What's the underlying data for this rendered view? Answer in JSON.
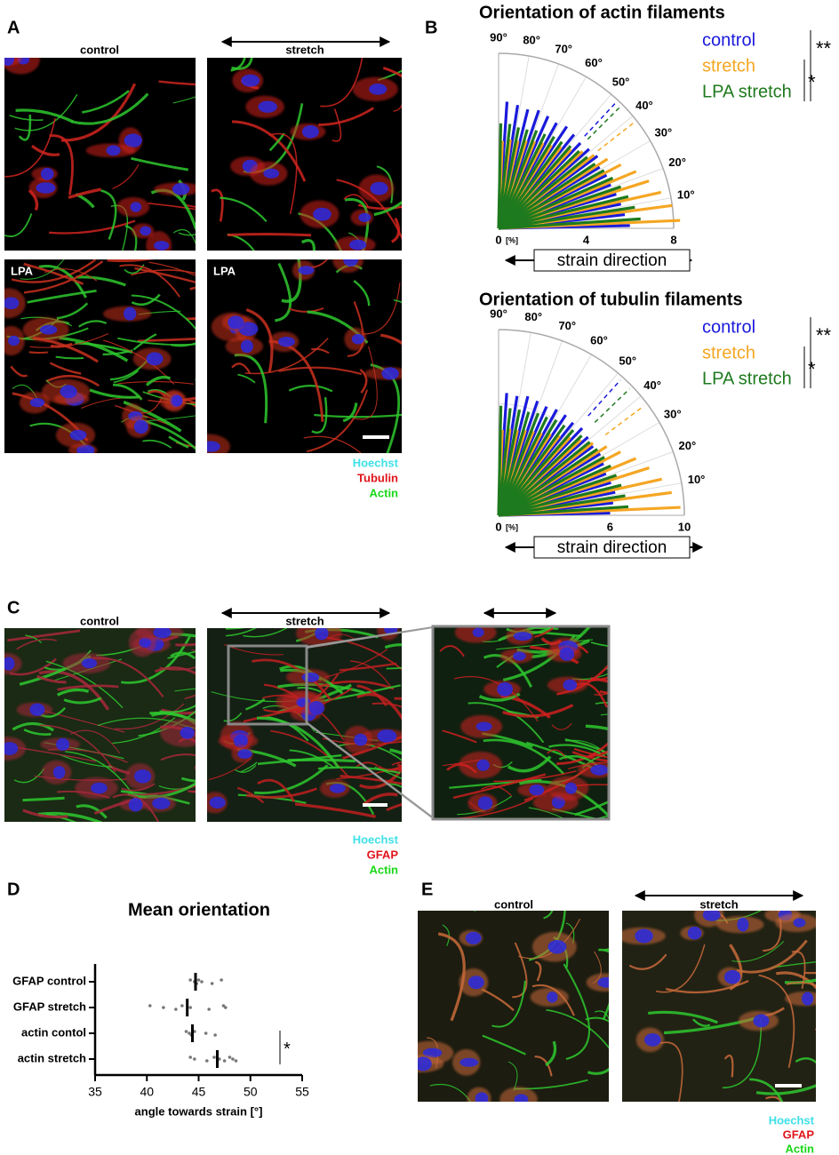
{
  "panel_a": {
    "label": "A",
    "control": "control",
    "stretch": "stretch",
    "lpa": [
      "LPA",
      "LPA"
    ],
    "legend": [
      "Hoechst",
      "Tubulin",
      "Actin"
    ]
  },
  "panel_b": {
    "label": "B"
  },
  "panel_c": {
    "label": "C",
    "control": "control",
    "stretch": "stretch",
    "legend": [
      "Hoechst",
      "GFAP",
      "Actin"
    ]
  },
  "panel_d": {
    "label": "D"
  },
  "panel_e": {
    "label": "E",
    "control": "control",
    "stretch": "stretch",
    "legend": [
      "Hoechst",
      "GFAP",
      "Actin"
    ]
  },
  "chart_data": [
    {
      "type": "polar_bar",
      "title": "Orientation of actin filaments",
      "x": [
        2.5,
        7.5,
        12.5,
        17.5,
        22.5,
        27.5,
        32.5,
        37.5,
        42.5,
        47.5,
        52.5,
        57.5,
        62.5,
        67.5,
        72.5,
        77.5,
        82.5,
        87.5
      ],
      "series": [
        {
          "name": "control",
          "color": "#1a1adb",
          "mean_angle": 47,
          "values": [
            6.0,
            5.8,
            5.7,
            5.6,
            5.5,
            5.5,
            5.4,
            5.6,
            5.5,
            5.4,
            5.5,
            5.6,
            5.5,
            5.6,
            5.7,
            5.6,
            5.7,
            5.8
          ]
        },
        {
          "name": "stretch",
          "color": "#f5a623",
          "mean_angle": 38,
          "values": [
            8.3,
            8.0,
            7.6,
            7.2,
            6.8,
            6.3,
            5.9,
            5.5,
            5.2,
            4.9,
            4.7,
            4.5,
            4.4,
            4.3,
            4.2,
            4.1,
            4.1,
            4.0
          ]
        },
        {
          "name": "LPA stretch",
          "color": "#1e7a1e",
          "mean_angle": 45,
          "values": [
            6.5,
            6.3,
            6.1,
            5.9,
            5.7,
            5.5,
            5.3,
            5.2,
            5.1,
            5.0,
            4.9,
            4.9,
            4.8,
            4.8,
            4.7,
            4.7,
            4.8,
            4.8
          ]
        }
      ],
      "xlim": [
        0,
        90
      ],
      "xticks": [
        {
          "value": 10,
          "label": "10°"
        },
        {
          "value": 20,
          "label": "20°"
        },
        {
          "value": 30,
          "label": "30°"
        },
        {
          "value": 40,
          "label": "40°"
        },
        {
          "value": 50,
          "label": "50°"
        },
        {
          "value": 60,
          "label": "60°"
        },
        {
          "value": 70,
          "label": "70°"
        },
        {
          "value": 80,
          "label": "80°"
        },
        {
          "value": 90,
          "label": "90°"
        }
      ],
      "ylim": [
        0,
        8
      ],
      "yticks": [
        0,
        4,
        8
      ],
      "unit": "[%]",
      "axis_label": "strain direction",
      "significance": [
        "**",
        "*"
      ],
      "grid": true
    },
    {
      "type": "polar_bar",
      "title": "Orientation of tubulin filaments",
      "x": [
        2.5,
        7.5,
        12.5,
        17.5,
        22.5,
        27.5,
        32.5,
        37.5,
        42.5,
        47.5,
        52.5,
        57.5,
        62.5,
        67.5,
        72.5,
        77.5,
        82.5,
        87.5
      ],
      "series": [
        {
          "name": "control",
          "color": "#1a1adb",
          "mean_angle": 48,
          "values": [
            6.0,
            6.2,
            6.4,
            6.3,
            6.2,
            6.3,
            6.4,
            6.3,
            6.4,
            6.5,
            6.4,
            6.5,
            6.5,
            6.4,
            6.5,
            6.6,
            6.5,
            6.6
          ]
        },
        {
          "name": "stretch",
          "color": "#f5a623",
          "mean_angle": 37,
          "values": [
            9.8,
            9.4,
            9.0,
            8.5,
            8.0,
            7.4,
            6.9,
            6.4,
            6.0,
            5.7,
            5.4,
            5.2,
            5.0,
            4.9,
            4.8,
            4.7,
            4.7,
            4.6
          ]
        },
        {
          "name": "LPA stretch",
          "color": "#1e7a1e",
          "mean_angle": 44,
          "values": [
            7.0,
            6.9,
            6.8,
            6.7,
            6.6,
            6.5,
            6.4,
            6.3,
            6.2,
            6.1,
            6.0,
            6.0,
            5.9,
            5.9,
            5.8,
            5.8,
            5.8,
            5.9
          ]
        }
      ],
      "xlim": [
        0,
        90
      ],
      "xticks": [
        {
          "value": 10,
          "label": "10°"
        },
        {
          "value": 20,
          "label": "20°"
        },
        {
          "value": 30,
          "label": "30°"
        },
        {
          "value": 40,
          "label": "40°"
        },
        {
          "value": 50,
          "label": "50°"
        },
        {
          "value": 60,
          "label": "60°"
        },
        {
          "value": 70,
          "label": "70°"
        },
        {
          "value": 80,
          "label": "80°"
        },
        {
          "value": 90,
          "label": "90°"
        }
      ],
      "ylim": [
        0,
        10
      ],
      "yticks": [
        0,
        6,
        10
      ],
      "unit": "[%]",
      "axis_label": "strain direction",
      "significance": [
        "**",
        "*"
      ],
      "grid": true
    },
    {
      "type": "dot",
      "title": "Mean orientation",
      "categories": [
        "GFAP control",
        "GFAP stretch",
        "actin contol",
        "actin stretch"
      ],
      "points": [
        [
          44.2,
          44.6,
          44.8,
          45.0,
          45.3,
          46.3,
          47.2
        ],
        [
          40.3,
          41.6,
          42.8,
          43.4,
          44.2,
          46.0,
          47.4,
          47.6
        ],
        [
          43.8,
          44.1,
          44.3,
          44.6,
          45.7,
          46.6
        ],
        [
          44.2,
          44.6,
          45.8,
          46.5,
          47.0,
          47.5,
          48.0,
          48.3,
          48.6
        ]
      ],
      "values": [
        44.7,
        43.9,
        44.4,
        46.8
      ],
      "xlim": [
        35,
        55
      ],
      "xticks": [
        35,
        40,
        45,
        50,
        55
      ],
      "xlabel": "angle towards strain [°]",
      "significance": "*"
    }
  ]
}
